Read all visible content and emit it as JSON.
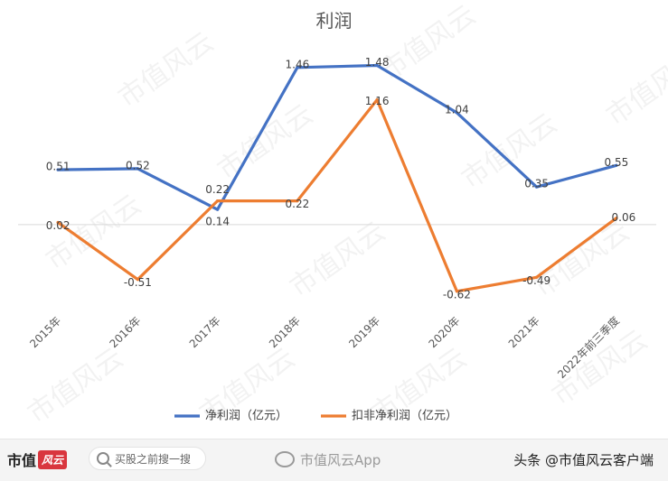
{
  "chart_data": {
    "type": "line",
    "title": "利润",
    "categories": [
      "2015年",
      "2016年",
      "2017年",
      "2018年",
      "2019年",
      "2020年",
      "2021年",
      "2022年前三季度"
    ],
    "series": [
      {
        "name": "净利润（亿元）",
        "color": "#4472c4",
        "values": [
          0.51,
          0.52,
          0.14,
          1.46,
          1.48,
          1.04,
          0.35,
          0.55
        ]
      },
      {
        "name": "扣非净利润（亿元）",
        "color": "#ed7d31",
        "values": [
          0.02,
          -0.51,
          0.22,
          0.22,
          1.16,
          -0.62,
          -0.49,
          0.06
        ]
      }
    ],
    "ylim": [
      -1.1,
      1.92
    ],
    "grid": false,
    "legend": "bottom"
  },
  "watermark": "市值风云",
  "footer": {
    "brand": "市值",
    "brand_badge": "风云",
    "search_placeholder": "买股之前搜一搜",
    "weibo_text": "市值风云App",
    "credit": "头条 @市值风云客户端"
  }
}
